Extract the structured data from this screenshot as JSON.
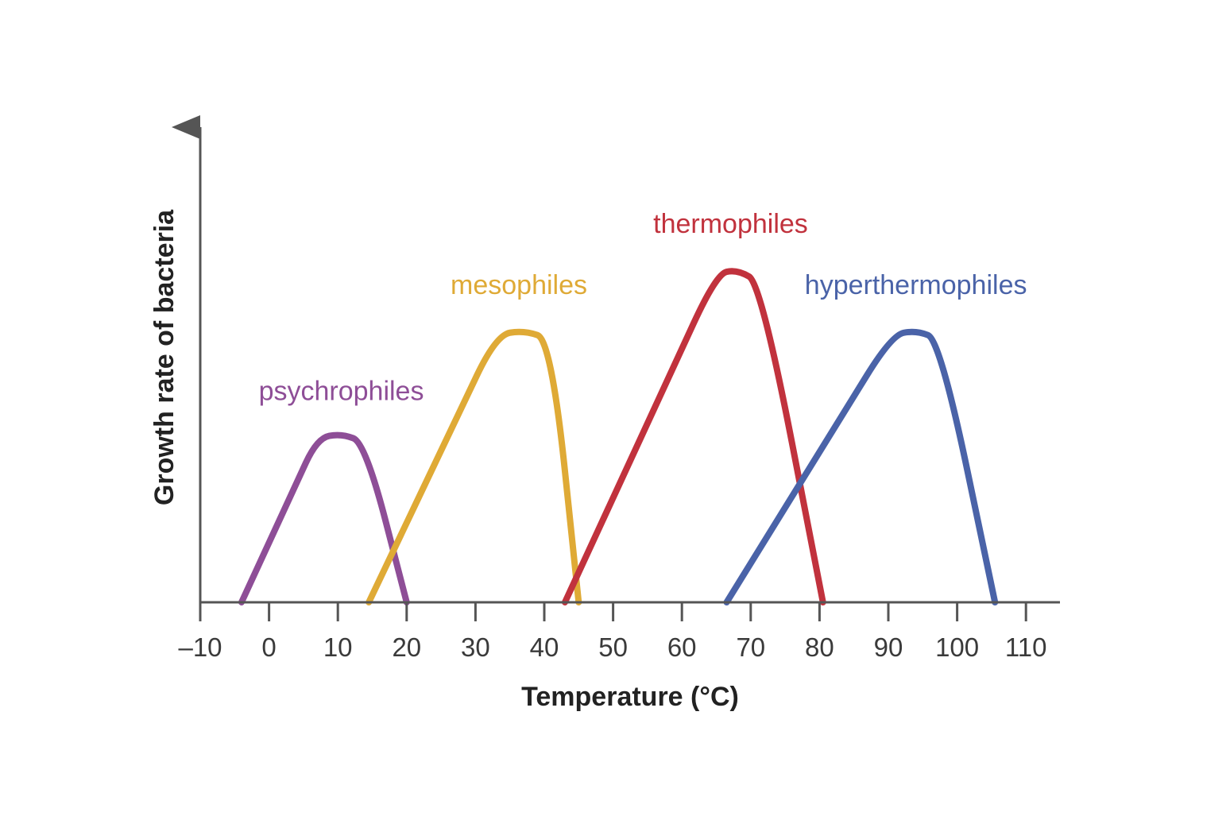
{
  "chart_data": {
    "type": "line",
    "xlabel": "Temperature (°C)",
    "ylabel": "Growth rate of bacteria",
    "xlim": [
      -10,
      115
    ],
    "ylim": [
      0,
      110
    ],
    "x_ticks": [
      -10,
      0,
      10,
      20,
      30,
      40,
      50,
      60,
      70,
      80,
      90,
      100,
      110
    ],
    "x_tick_labels": [
      "–10",
      "0",
      "10",
      "20",
      "30",
      "40",
      "50",
      "60",
      "70",
      "80",
      "90",
      "100",
      "110"
    ],
    "y_ticks_shown": false,
    "grid": false,
    "legend": "inline labels",
    "series": [
      {
        "name": "psychrophiles",
        "color": "#8e4e97",
        "x": [
          -4,
          7,
          10.5,
          14,
          20
        ],
        "y": [
          0,
          35,
          36,
          34,
          0
        ]
      },
      {
        "name": "mesophiles",
        "color": "#dfaa36",
        "x": [
          14.5,
          33,
          37,
          41,
          45
        ],
        "y": [
          0,
          57,
          58,
          56,
          0
        ]
      },
      {
        "name": "thermophiles",
        "color": "#c1323d",
        "x": [
          43,
          65,
          68,
          71.5,
          80.5
        ],
        "y": [
          0,
          70,
          71,
          68,
          0
        ]
      },
      {
        "name": "hyperthermophiles",
        "color": "#4a63a8",
        "x": [
          66.5,
          90.5,
          94,
          97.5,
          105.5
        ],
        "y": [
          0,
          57,
          58,
          56,
          0
        ]
      }
    ]
  }
}
